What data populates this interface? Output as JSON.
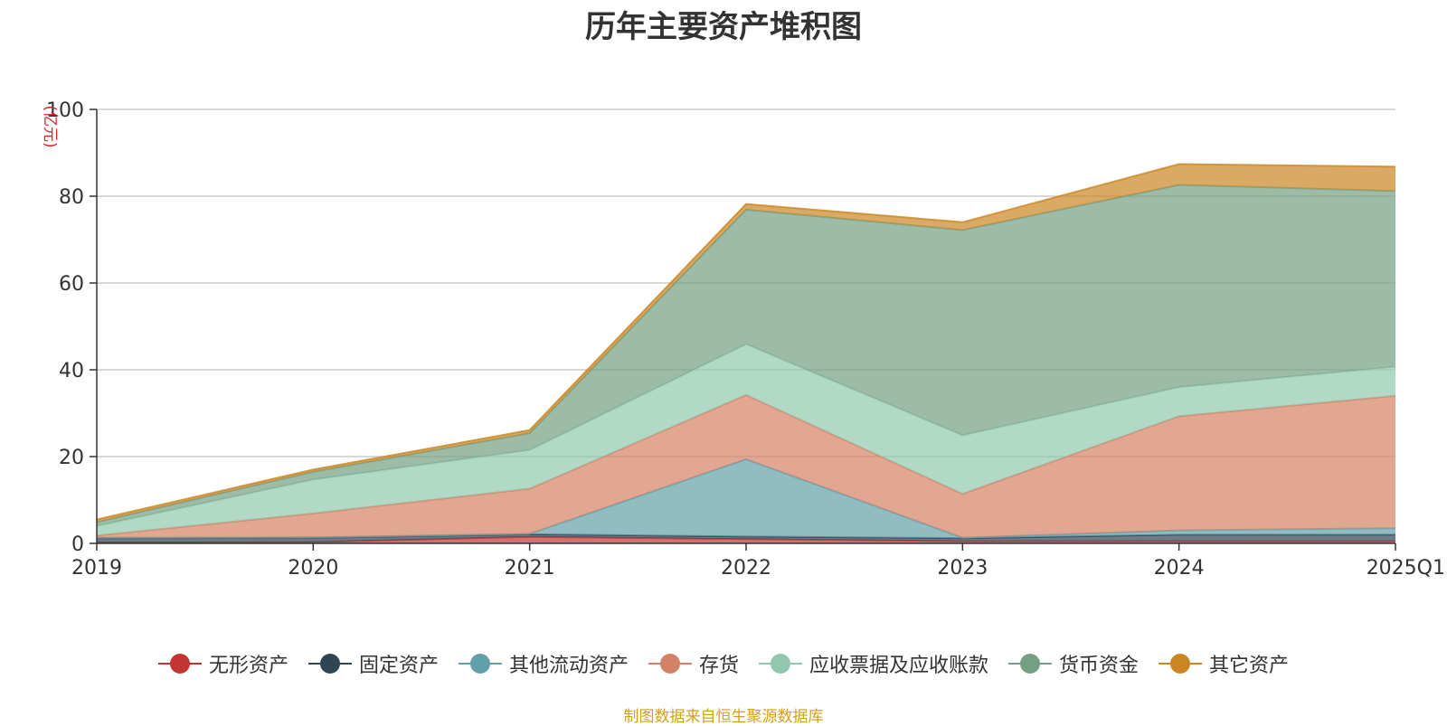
{
  "chart_data": {
    "type": "area",
    "title": "历年主要资产堆积图",
    "unit_label": "(亿元)",
    "categories": [
      "2019",
      "2020",
      "2021",
      "2022",
      "2023",
      "2024",
      "2025Q1"
    ],
    "ylim": [
      0,
      100
    ],
    "yticks": [
      0,
      20,
      40,
      60,
      80,
      100
    ],
    "stacked": true,
    "grid": true,
    "legend_position": "bottom",
    "series": [
      {
        "name": "无形资产",
        "color": "#c23531",
        "values": [
          0.2,
          0.3,
          1.5,
          1.0,
          0.5,
          0.5,
          0.5
        ]
      },
      {
        "name": "固定资产",
        "color": "#2f4554",
        "values": [
          1.0,
          1.0,
          0.6,
          0.6,
          0.7,
          1.5,
          1.5
        ]
      },
      {
        "name": "其他流动资产",
        "color": "#61a0a8",
        "values": [
          0.1,
          0.1,
          0.1,
          17.8,
          0.1,
          1.0,
          1.5
        ]
      },
      {
        "name": "存货",
        "color": "#d48265",
        "values": [
          0.5,
          5.5,
          10.4,
          14.8,
          10.1,
          26.3,
          30.5
        ]
      },
      {
        "name": "应收票据及应收账款",
        "color": "#91c7ae",
        "values": [
          2.2,
          7.8,
          8.9,
          11.7,
          13.5,
          6.7,
          6.7
        ]
      },
      {
        "name": "货币资金",
        "color": "#749f83",
        "values": [
          0.9,
          1.8,
          3.9,
          31.0,
          47.3,
          46.6,
          40.5
        ]
      },
      {
        "name": "其它资产",
        "color": "#ca8622",
        "values": [
          0.6,
          0.5,
          0.7,
          1.3,
          1.8,
          4.8,
          5.6
        ]
      }
    ]
  },
  "source_note": "制图数据来自恒生聚源数据库"
}
